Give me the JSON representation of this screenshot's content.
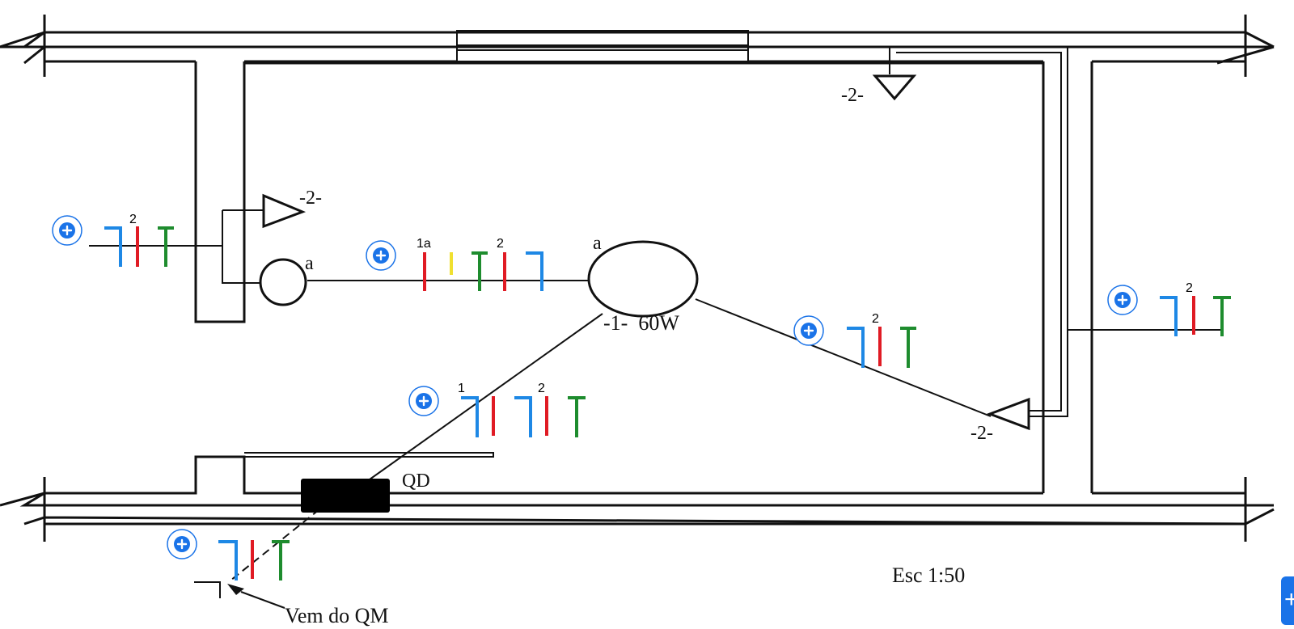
{
  "labels": {
    "lamp_power": "-1-  60W",
    "lamp_letter_main": "a",
    "lamp_letter_small": "a",
    "switch_2_left": "-2-",
    "switch_2_top": "-2-",
    "switch_2_right": "-2-",
    "panel": "QD",
    "scale": "Esc 1:50",
    "source": "Vem do QM"
  },
  "conductor_colors": {
    "neutral": "#1e88e5",
    "phase": "#e01b24",
    "earth": "#1e8c2e",
    "return": "#f0e030"
  },
  "groups": [
    {
      "id": "left-wall",
      "numbers": [
        "2"
      ]
    },
    {
      "id": "switch-to-lamp",
      "numbers": [
        "1a",
        "2"
      ]
    },
    {
      "id": "lamp-to-right",
      "numbers": [
        "2"
      ]
    },
    {
      "id": "right-room",
      "numbers": [
        "2"
      ]
    },
    {
      "id": "panel-to-lamp",
      "numbers": [
        "1",
        "2"
      ]
    },
    {
      "id": "incoming-feed",
      "numbers": []
    }
  ],
  "fab": {
    "label": "+"
  }
}
